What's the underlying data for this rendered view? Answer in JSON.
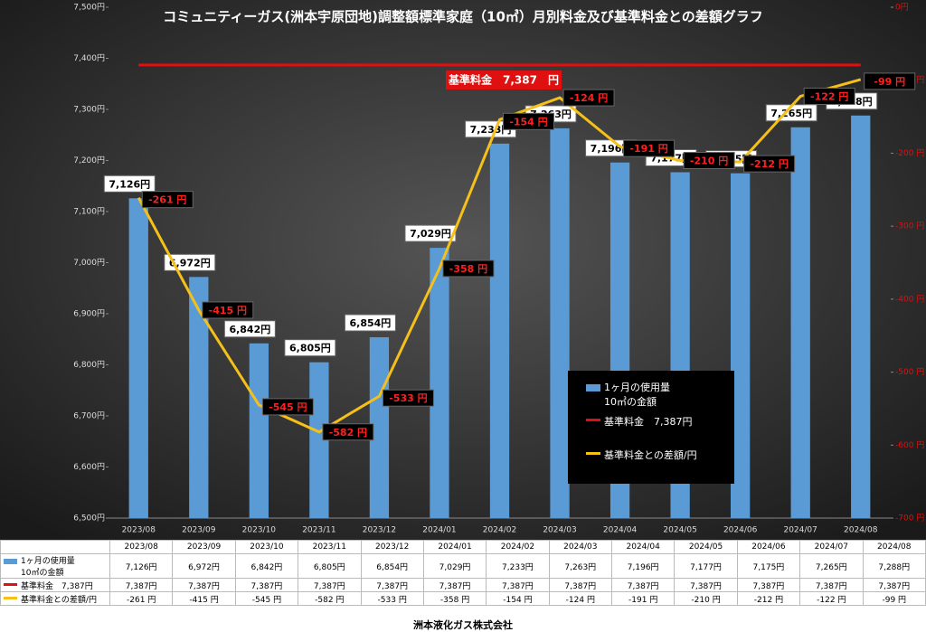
{
  "chart_data": {
    "type": "bar",
    "title": "コミュニティーガス(洲本宇原団地)調整額標準家庭（10㎥）月別料金及び基準料金との差額グラフ",
    "categories": [
      "2023/08",
      "2023/09",
      "2023/10",
      "2023/11",
      "2023/12",
      "2024/01",
      "2024/02",
      "2024/03",
      "2024/04",
      "2024/05",
      "2024/06",
      "2024/07",
      "2024/08"
    ],
    "series": [
      {
        "name": "1ヶ月の使用量\n10㎥の金額",
        "type": "bar",
        "color": "#5b9bd5",
        "values": [
          7126,
          6972,
          6842,
          6805,
          6854,
          7029,
          7233,
          7263,
          7196,
          7177,
          7175,
          7265,
          7288
        ],
        "value_labels": [
          "7,126円",
          "6,972円",
          "6,842円",
          "6,805円",
          "6,854円",
          "7,029円",
          "7,233円",
          "7,263円",
          "7,196円",
          "7,177円",
          "7,175円",
          "7,265円",
          "7,288円"
        ]
      },
      {
        "name": "基準料金　7,387円",
        "type": "line",
        "color": "#e01010",
        "values": [
          7387,
          7387,
          7387,
          7387,
          7387,
          7387,
          7387,
          7387,
          7387,
          7387,
          7387,
          7387,
          7387
        ],
        "value_labels": [
          "7,387円",
          "7,387円",
          "7,387円",
          "7,387円",
          "7,387円",
          "7,387円",
          "7,387円",
          "7,387円",
          "7,387円",
          "7,387円",
          "7,387円",
          "7,387円",
          "7,387円"
        ]
      },
      {
        "name": "基準料金との差額/円",
        "type": "line",
        "axis": "y2",
        "color": "#f5c01a",
        "values": [
          -261,
          -415,
          -545,
          -582,
          -533,
          -358,
          -154,
          -124,
          -191,
          -210,
          -212,
          -122,
          -99
        ],
        "value_labels": [
          "-261 円",
          "-415 円",
          "-545 円",
          "-582 円",
          "-533 円",
          "-358 円",
          "-154 円",
          "-124 円",
          "-191 円",
          "-210 円",
          "-212 円",
          "-122 円",
          "-99 円"
        ]
      }
    ],
    "annotation": "基準料金　7,387　円",
    "ylim": [
      6500,
      7500
    ],
    "yticks": [
      {
        "value": 6500,
        "label": "6,500円"
      },
      {
        "value": 6600,
        "label": "6,600円"
      },
      {
        "value": 6700,
        "label": "6,700円"
      },
      {
        "value": 6800,
        "label": "6,800円"
      },
      {
        "value": 6900,
        "label": "6,900円"
      },
      {
        "value": 7000,
        "label": "7,000円"
      },
      {
        "value": 7100,
        "label": "7,100円"
      },
      {
        "value": 7200,
        "label": "7,200円"
      },
      {
        "value": 7300,
        "label": "7,300円"
      },
      {
        "value": 7400,
        "label": "7,400円"
      },
      {
        "value": 7500,
        "label": "7,500円"
      }
    ],
    "y2lim": [
      -700,
      0
    ],
    "y2ticks": [
      {
        "value": -700,
        "label": "-700 円"
      },
      {
        "value": -600,
        "label": "-600 円"
      },
      {
        "value": -500,
        "label": "-500 円"
      },
      {
        "value": -400,
        "label": "-400 円"
      },
      {
        "value": -300,
        "label": "-300 円"
      },
      {
        "value": -200,
        "label": "-200 円"
      },
      {
        "value": -100,
        "label": "-100 円"
      },
      {
        "value": 0,
        "label": "0円"
      }
    ],
    "grid": false,
    "footer": "洲本液化ガス株式会社"
  }
}
